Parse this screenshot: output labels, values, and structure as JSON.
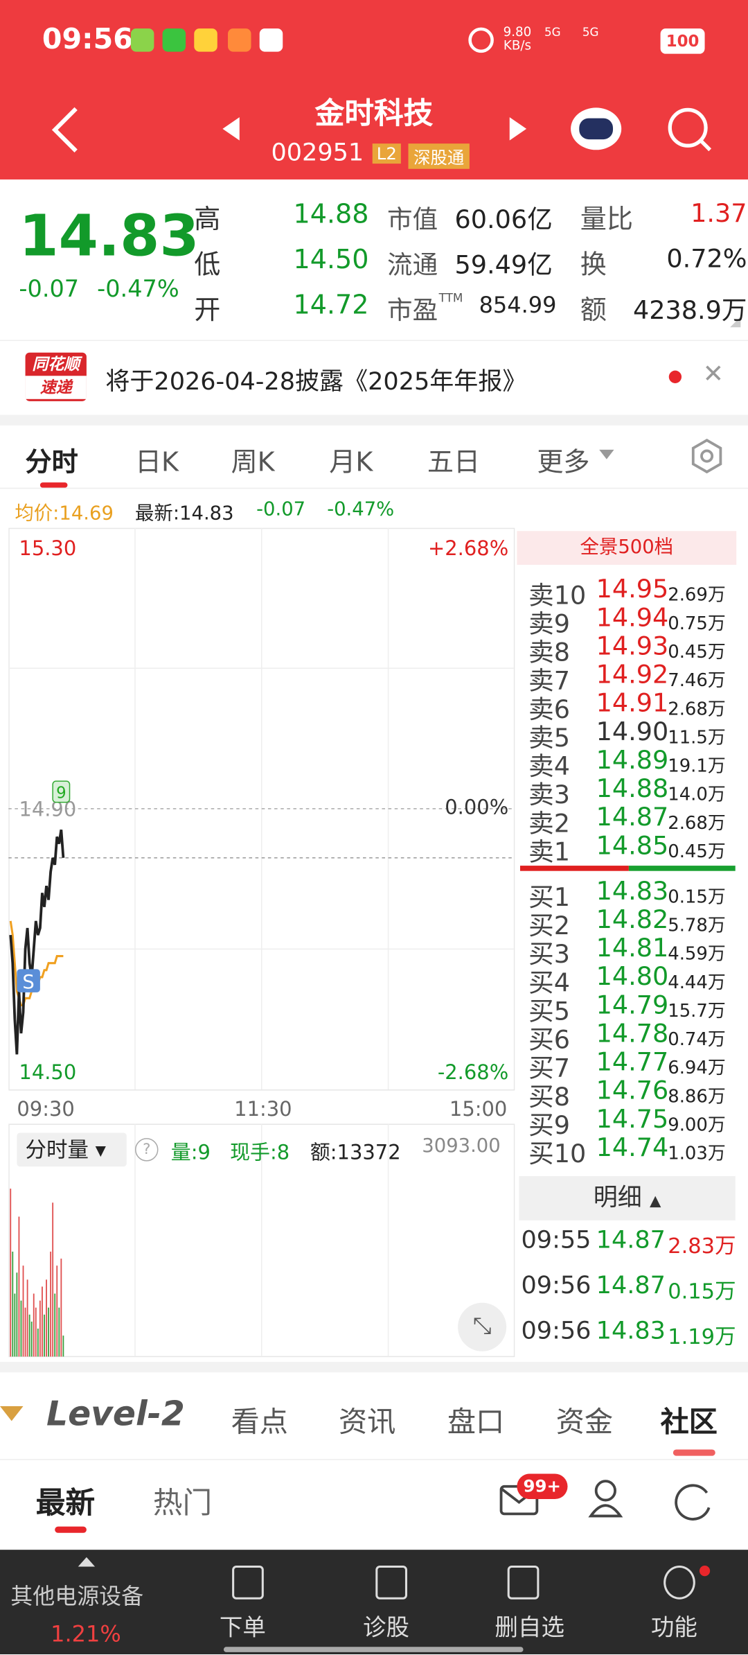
{
  "status_bar": {
    "time": "09:56",
    "net_speed": "9.80",
    "net_unit": "KB/s",
    "signal_1": "5G",
    "signal_2": "5G",
    "battery": "100"
  },
  "header": {
    "title": "金时科技",
    "code": "002951",
    "badges": [
      "L2",
      "深股通"
    ]
  },
  "quote": {
    "price": "14.83",
    "change": "-0.07",
    "change_pct": "-0.47%",
    "hlo": [
      {
        "label": "高",
        "value": "14.88"
      },
      {
        "label": "低",
        "value": "14.50"
      },
      {
        "label": "开",
        "value": "14.72"
      }
    ],
    "stats": [
      {
        "label": "市值",
        "value": "60.06亿"
      },
      {
        "label": "流通",
        "value": "59.49亿"
      },
      {
        "label": "市盈",
        "sup": "TTM",
        "value": "854.99"
      }
    ],
    "extra": [
      {
        "label": "量比",
        "value": "1.37"
      },
      {
        "label": "换",
        "value": "0.72%"
      },
      {
        "label": "额",
        "value": "4238.9万"
      }
    ]
  },
  "news": {
    "logo_top": "同花顺",
    "logo_bottom": "速递",
    "text": "将于2026-04-28披露《2025年年报》"
  },
  "tabs": [
    "分时",
    "日K",
    "周K",
    "月K",
    "五日",
    "更多"
  ],
  "info_line": {
    "avg": "均价:14.69",
    "latest": "最新:14.83",
    "change": "-0.07",
    "change_pct": "-0.47%"
  },
  "intraday": {
    "ylim": [
      14.5,
      15.3
    ],
    "y_labels": {
      "top": "15.30",
      "mid": "14.90",
      "bottom": "14.50"
    },
    "pct_labels": {
      "top": "+2.68%",
      "mid": "0.00%",
      "bottom": "-2.68%"
    },
    "x_labels": [
      "09:30",
      "11:30",
      "15:00"
    ],
    "badge_high": "9",
    "badge_signal": "S",
    "price": [
      14.72,
      14.68,
      14.6,
      14.55,
      14.64,
      14.58,
      14.61,
      14.7,
      14.73,
      14.68,
      14.66,
      14.7,
      14.74,
      14.72,
      14.73,
      14.78,
      14.76,
      14.79,
      14.77,
      14.81,
      14.83,
      14.82,
      14.86,
      14.85,
      14.87,
      14.83
    ],
    "avg": [
      14.74,
      14.72,
      14.68,
      14.64,
      14.63,
      14.62,
      14.62,
      14.63,
      14.63,
      14.63,
      14.64,
      14.64,
      14.65,
      14.65,
      14.66,
      14.66,
      14.67,
      14.67,
      14.68,
      14.68,
      14.68,
      14.68,
      14.69,
      14.69,
      14.69,
      14.69
    ],
    "volume_title": "分时量",
    "volume_stats": [
      "量:9",
      "现手:8",
      "额:13372"
    ],
    "volume_max_label": "3093.00",
    "volume_ylim": [
      0,
      3093
    ],
    "volume": [
      2400,
      1500,
      900,
      1200,
      2000,
      800,
      1300,
      700,
      1100,
      600,
      500,
      900,
      700,
      400,
      800,
      1000,
      600,
      1100,
      700,
      1500,
      2200,
      900,
      1300,
      700,
      1400,
      300
    ]
  },
  "order_book": {
    "title": "全景500档",
    "asks": [
      {
        "label": "卖10",
        "price": "14.95",
        "volume": "2.69万"
      },
      {
        "label": "卖9",
        "price": "14.94",
        "volume": "0.75万"
      },
      {
        "label": "卖8",
        "price": "14.93",
        "volume": "0.45万"
      },
      {
        "label": "卖7",
        "price": "14.92",
        "volume": "7.46万"
      },
      {
        "label": "卖6",
        "price": "14.91",
        "volume": "2.68万"
      },
      {
        "label": "卖5",
        "price": "14.90",
        "volume": "11.5万"
      },
      {
        "label": "卖4",
        "price": "14.89",
        "volume": "19.1万"
      },
      {
        "label": "卖3",
        "price": "14.88",
        "volume": "14.0万"
      },
      {
        "label": "卖2",
        "price": "14.87",
        "volume": "2.68万"
      },
      {
        "label": "卖1",
        "price": "14.85",
        "volume": "0.45万"
      }
    ],
    "bids": [
      {
        "label": "买1",
        "price": "14.83",
        "volume": "0.15万"
      },
      {
        "label": "买2",
        "price": "14.82",
        "volume": "5.78万"
      },
      {
        "label": "买3",
        "price": "14.81",
        "volume": "4.59万"
      },
      {
        "label": "买4",
        "price": "14.80",
        "volume": "4.44万"
      },
      {
        "label": "买5",
        "price": "14.79",
        "volume": "15.7万"
      },
      {
        "label": "买6",
        "price": "14.78",
        "volume": "0.74万"
      },
      {
        "label": "买7",
        "price": "14.77",
        "volume": "6.94万"
      },
      {
        "label": "买8",
        "price": "14.76",
        "volume": "8.86万"
      },
      {
        "label": "买9",
        "price": "14.75",
        "volume": "9.00万"
      },
      {
        "label": "买10",
        "price": "14.74",
        "volume": "1.03万"
      }
    ]
  },
  "ticks": {
    "title": "明细",
    "rows": [
      {
        "time": "09:55",
        "price": "14.87",
        "volume": "2.83万"
      },
      {
        "time": "09:56",
        "price": "14.87",
        "volume": "0.15万"
      },
      {
        "time": "09:56",
        "price": "14.83",
        "volume": "1.19万"
      }
    ]
  },
  "section_tabs": [
    "Level-2",
    "看点",
    "资讯",
    "盘口",
    "资金",
    "社区"
  ],
  "sub_tabs": [
    "最新",
    "热门"
  ],
  "mail_badge": "99+",
  "bottom_nav": {
    "sector": "其他电源设备",
    "sector_change": "1.21%",
    "items": [
      "下单",
      "诊股",
      "删自选",
      "功能"
    ]
  }
}
